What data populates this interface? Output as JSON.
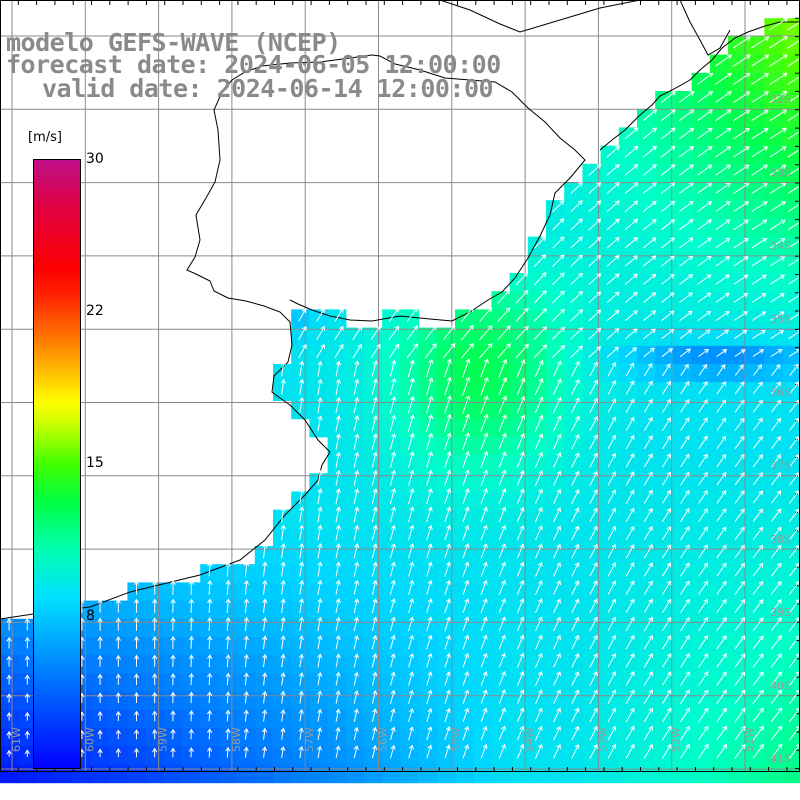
{
  "titles": {
    "model": "modelo GEFS-WAVE (NCEP)",
    "forecast": "forecast date: 2024-06-05 12:00:00",
    "valid": "valid date: 2024-06-14 12:00:00"
  },
  "colorbar": {
    "unit": "[m/s]",
    "ticks": [
      {
        "label": "30",
        "value": 30
      },
      {
        "label": "22",
        "value": 22
      },
      {
        "label": "15",
        "value": 15
      },
      {
        "label": "8",
        "value": 8
      }
    ],
    "range": [
      0,
      30
    ]
  },
  "map": {
    "variable": "wind speed",
    "longitude_labels": [
      "61W",
      "60W",
      "59W",
      "58W",
      "57W",
      "56W",
      "55W",
      "54W",
      "53W",
      "52W",
      "51W"
    ],
    "latitude_labels": [
      "32S",
      "33S",
      "34S",
      "35S",
      "36S",
      "37S",
      "38S",
      "39S",
      "40S",
      "41S"
    ],
    "colors": {
      "land": "#ffffff",
      "grid": "#888888",
      "coast": "#000000",
      "arrow": "#ffffff"
    }
  }
}
